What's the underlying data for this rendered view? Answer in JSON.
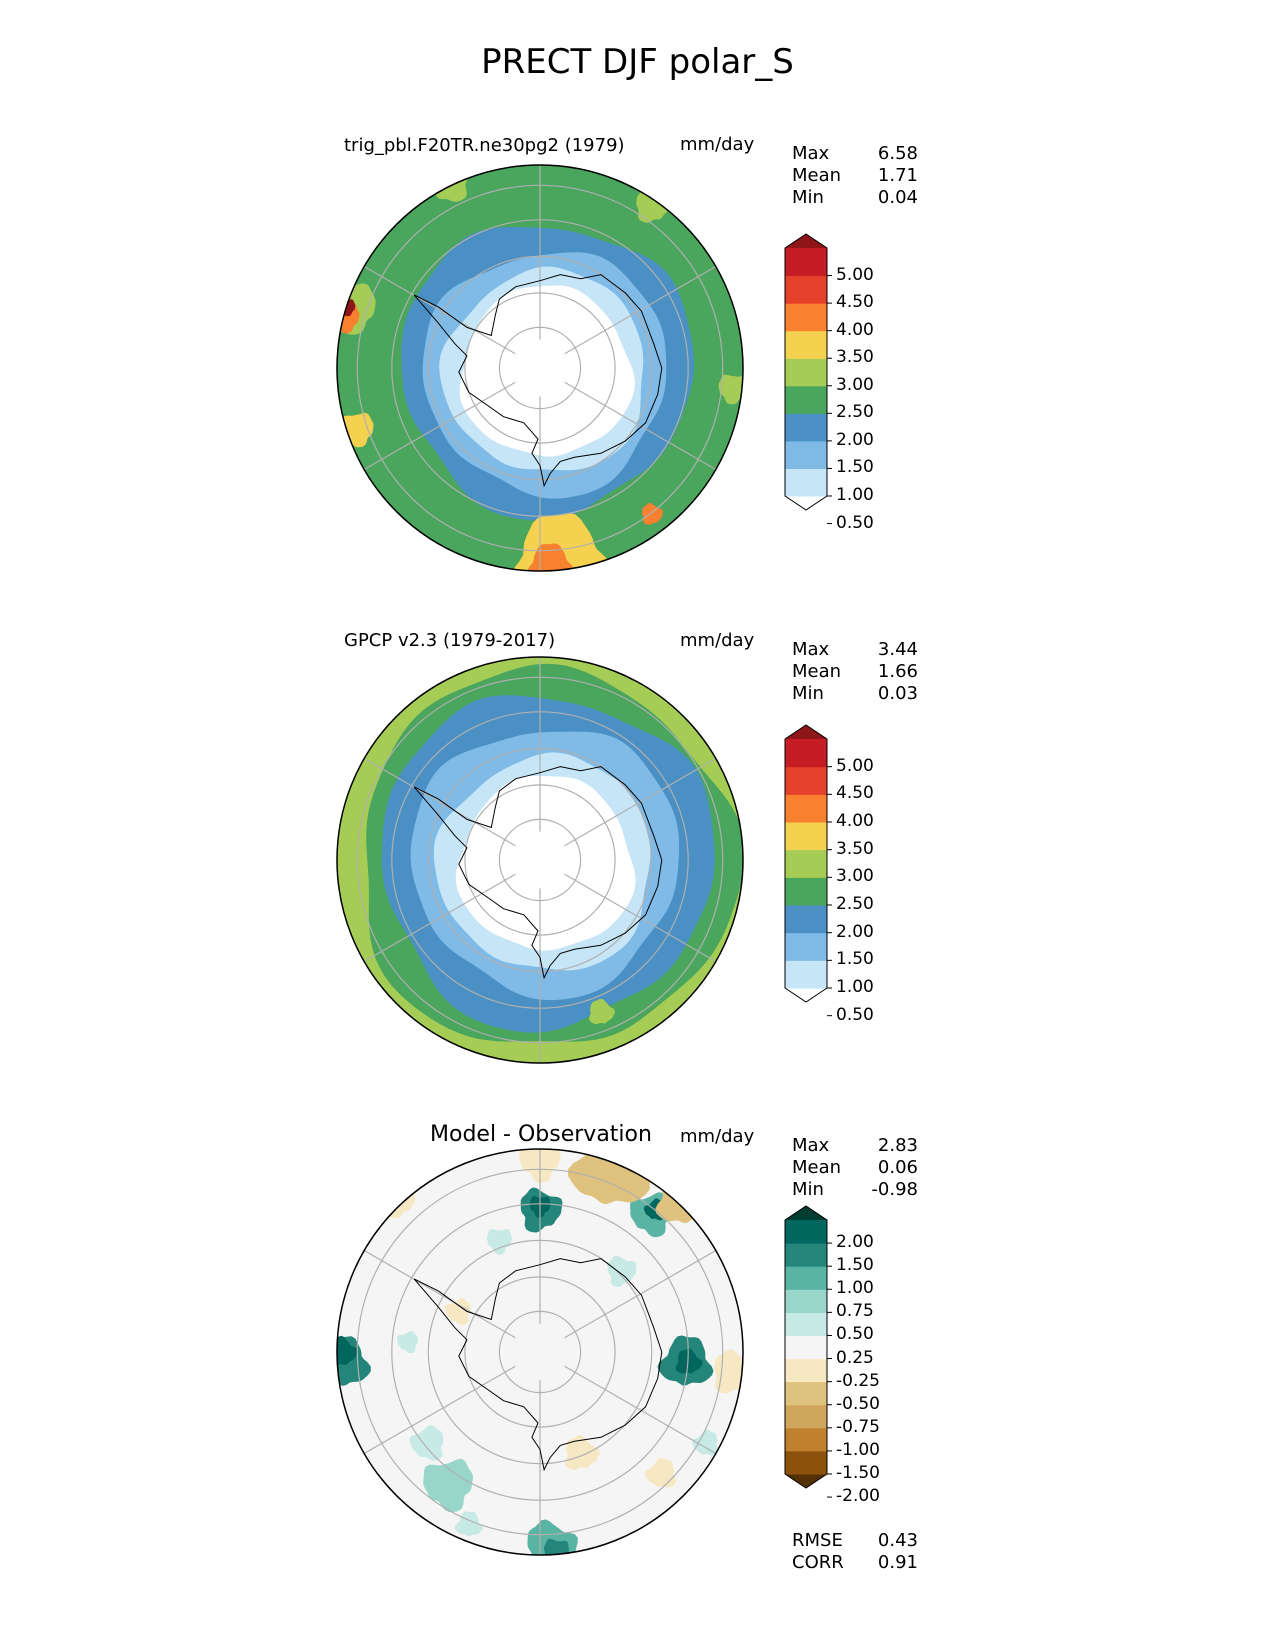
{
  "title": "PRECT DJF polar_S",
  "colors": {
    "precip": [
      "#ffffff",
      "#c6e6f8",
      "#7fbbe6",
      "#4a90c4",
      "#4aa55d",
      "#a5cc55",
      "#f5d150",
      "#f7812f",
      "#e5402a",
      "#c61c25",
      "#8e1518"
    ],
    "diff": [
      "#543005",
      "#8c510a",
      "#bf812d",
      "#d0a55e",
      "#dfc27d",
      "#f6e8c3",
      "#f5f5f5",
      "#c7eae5",
      "#97d6c9",
      "#5ab4a4",
      "#24867a",
      "#01665e",
      "#003c30"
    ],
    "coast": "#000000",
    "grid": "#b0b0b0"
  },
  "panels": [
    {
      "name": "test",
      "title": "trig_pbl.F20TR.ne30pg2 (1979)",
      "units": "mm/day",
      "stats": [
        {
          "label": "Max",
          "value": "6.58"
        },
        {
          "label": "Mean",
          "value": "1.71"
        },
        {
          "label": "Min",
          "value": "0.04"
        }
      ],
      "colorbar": {
        "ticks": [
          "5.00",
          "4.50",
          "4.00",
          "3.50",
          "3.00",
          "2.50",
          "2.00",
          "1.50",
          "1.00",
          "0.50"
        ],
        "palette": "precip"
      }
    },
    {
      "name": "reference",
      "title": "GPCP v2.3 (1979-2017)",
      "units": "mm/day",
      "stats": [
        {
          "label": "Max",
          "value": "3.44"
        },
        {
          "label": "Mean",
          "value": "1.66"
        },
        {
          "label": "Min",
          "value": "0.03"
        }
      ],
      "colorbar": {
        "ticks": [
          "5.00",
          "4.50",
          "4.00",
          "3.50",
          "3.00",
          "2.50",
          "2.00",
          "1.50",
          "1.00",
          "0.50"
        ],
        "palette": "precip"
      }
    },
    {
      "name": "difference",
      "title": "Model - Observation",
      "units": "mm/day",
      "stats": [
        {
          "label": "Max",
          "value": "2.83"
        },
        {
          "label": "Mean",
          "value": "0.06"
        },
        {
          "label": "Min",
          "value": "-0.98"
        }
      ],
      "colorbar": {
        "ticks": [
          "2.00",
          "1.50",
          "1.00",
          "0.75",
          "0.50",
          "0.25",
          "-0.25",
          "-0.50",
          "-0.75",
          "-1.00",
          "-1.50",
          "-2.00"
        ],
        "palette": "diff"
      },
      "metrics": [
        {
          "label": "RMSE",
          "value": "0.43"
        },
        {
          "label": "CORR",
          "value": "0.91"
        }
      ]
    }
  ]
}
